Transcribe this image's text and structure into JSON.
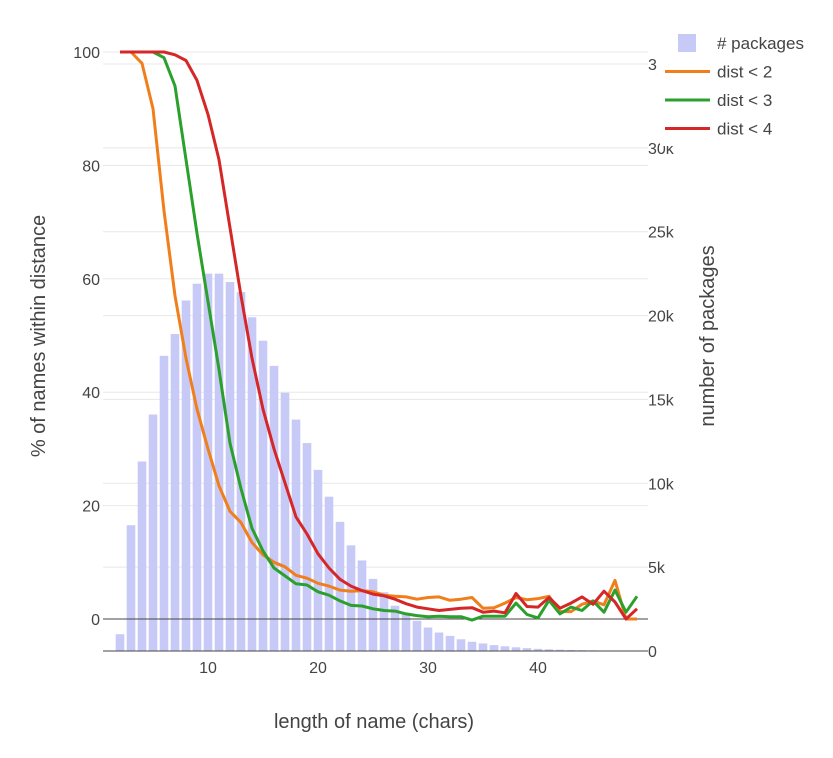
{
  "chart_data": {
    "type": "bar+line",
    "xlabel": "length of name (chars)",
    "ylabel_left": "% of names within distance",
    "ylabel_right": "number of packages",
    "x_ticks": [
      "10",
      "20",
      "30",
      "40"
    ],
    "left_ticks": [
      "0",
      "20",
      "40",
      "60",
      "80",
      "100"
    ],
    "right_ticks": [
      "0",
      "5k",
      "10k",
      "15k",
      "20k",
      "25k",
      "30k",
      "3"
    ],
    "left_ylim": [
      -5.8,
      100
    ],
    "right_ylim": [
      0,
      35000
    ],
    "grid": true,
    "legend_position": "top-right",
    "legend": [
      "# packages",
      "dist < 2",
      "dist < 3",
      "dist < 4"
    ],
    "colors": {
      "bars": "#c7c9f7",
      "dist2": "#f07f1b",
      "dist3": "#2ca02c",
      "dist4": "#d62728",
      "grid": "#e8e8e8",
      "zero_line": "#444444"
    },
    "x": [
      2,
      3,
      4,
      5,
      6,
      7,
      8,
      9,
      10,
      11,
      12,
      13,
      14,
      15,
      16,
      17,
      18,
      19,
      20,
      21,
      22,
      23,
      24,
      25,
      26,
      27,
      28,
      29,
      30,
      31,
      32,
      33,
      34,
      35,
      36,
      37,
      38,
      39,
      40,
      41,
      42,
      43,
      44,
      45,
      46,
      47,
      48,
      49
    ],
    "series": [
      {
        "name": "# packages",
        "axis": "right",
        "kind": "bar",
        "values": [
          1000,
          7500,
          11300,
          14100,
          17600,
          18900,
          20900,
          21900,
          22500,
          22500,
          22000,
          21400,
          19900,
          18500,
          17000,
          15400,
          13800,
          12400,
          10800,
          9200,
          7700,
          6300,
          5400,
          4300,
          3500,
          2700,
          2200,
          1800,
          1400,
          1100,
          900,
          700,
          550,
          450,
          350,
          280,
          220,
          170,
          130,
          100,
          80,
          60,
          50,
          40,
          30,
          25,
          20,
          15
        ]
      },
      {
        "name": "dist < 2",
        "axis": "left",
        "kind": "line",
        "values": [
          100,
          100,
          98,
          90,
          72,
          57,
          46,
          37,
          30,
          23.5,
          19,
          17,
          13.5,
          11.3,
          10,
          9.2,
          7.7,
          7.2,
          6.3,
          5.8,
          5.1,
          4.9,
          5,
          4.8,
          4.2,
          4,
          3.9,
          3.5,
          3.8,
          3.9,
          3.3,
          3.5,
          3.8,
          1.9,
          2,
          2.8,
          3.8,
          3.4,
          3.6,
          4,
          1.3,
          1.3,
          2.6,
          3.2,
          2.5,
          6.8,
          0,
          0
        ]
      },
      {
        "name": "dist < 3",
        "axis": "left",
        "kind": "line",
        "values": [
          100,
          100,
          100,
          100,
          99,
          94,
          81,
          68,
          56,
          44,
          31,
          23,
          16,
          12,
          9,
          7.6,
          6.2,
          6,
          4.8,
          4.2,
          3.2,
          2.4,
          2.3,
          1.8,
          1.5,
          1.4,
          0.9,
          0.6,
          0.4,
          0.5,
          0.4,
          0.4,
          -0.2,
          0.5,
          0.5,
          0.5,
          2.8,
          0.8,
          0.2,
          3.3,
          0.9,
          2.1,
          1.5,
          3.2,
          1.2,
          5.1,
          1.2,
          4
        ]
      },
      {
        "name": "dist < 4",
        "axis": "left",
        "kind": "line",
        "values": [
          100,
          100,
          100,
          100,
          100,
          99.5,
          98.5,
          95,
          89,
          81,
          69,
          57,
          46,
          37,
          30,
          24,
          18,
          15,
          11.5,
          9,
          7,
          5.8,
          5,
          4.4,
          4.1,
          3.5,
          2.7,
          2.1,
          1.8,
          1.5,
          1.7,
          1.9,
          2,
          1.2,
          1.4,
          1.1,
          4.5,
          2.2,
          2.1,
          3.8,
          1.9,
          2.8,
          3.9,
          2.6,
          4.9,
          3,
          0,
          1.8
        ]
      }
    ]
  }
}
